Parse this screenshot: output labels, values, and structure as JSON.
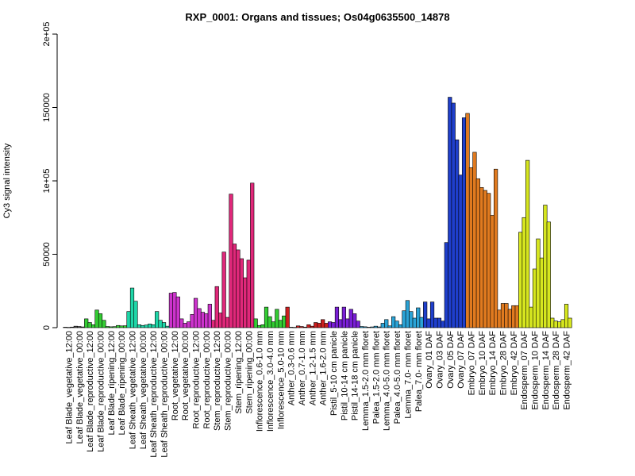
{
  "chart_data": {
    "type": "bar",
    "title": "RXP_0001: Organs and tissues; Os04g0635500_14878",
    "xlabel": "",
    "ylabel": "Cy3 signal intensity",
    "ylim": [
      0,
      200000
    ],
    "yticks": [
      0,
      50000,
      100000,
      150000,
      200000
    ],
    "yticklabels": [
      "0",
      "50000",
      "1e+05",
      "150000",
      "2e+05"
    ],
    "grid": false,
    "legend": "none",
    "groups": [
      {
        "label": "Leaf Blade_vegetative_12:00",
        "color": "#4d4d4d",
        "values": [
          300,
          200,
          400
        ]
      },
      {
        "label": "Leaf Blade_vegetative_00:00",
        "color": "#4d4d4d",
        "values": [
          1000,
          800,
          500
        ]
      },
      {
        "label": "Leaf Blade_reproductive_12:00",
        "color": "#33cc33",
        "values": [
          6000,
          3500,
          2000
        ]
      },
      {
        "label": "Leaf Blade_reproductive_00:00",
        "color": "#33cc33",
        "values": [
          12000,
          9500,
          5000
        ]
      },
      {
        "label": "Leaf Blade_ripening_12:00",
        "color": "#33cc33",
        "values": [
          800,
          600,
          700
        ]
      },
      {
        "label": "Leaf Blade_ripening_00:00",
        "color": "#33cc33",
        "values": [
          1500,
          1200,
          1300
        ]
      },
      {
        "label": "Leaf Sheath_vegetative_12:00",
        "color": "#1fd6a8",
        "values": [
          11000,
          27000,
          18000
        ]
      },
      {
        "label": "Leaf Sheath_vegetative_00:00",
        "color": "#1fd6a8",
        "values": [
          2000,
          1500,
          1800
        ]
      },
      {
        "label": "Leaf Sheath_reproductive_12:00",
        "color": "#1fd6a8",
        "values": [
          2500,
          2000,
          11000
        ]
      },
      {
        "label": "Leaf Sheath_reproductive_00:00",
        "color": "#1fd6a8",
        "values": [
          5000,
          3500,
          1000
        ]
      },
      {
        "label": "Root_vegetative_12:00",
        "color": "#cc33cc",
        "values": [
          23500,
          24000,
          21000
        ]
      },
      {
        "label": "Root_vegetative_00:00",
        "color": "#cc33cc",
        "values": [
          6000,
          3000,
          4000
        ]
      },
      {
        "label": "Root_reproductive_12:00",
        "color": "#cc33cc",
        "values": [
          9000,
          20000,
          13000
        ]
      },
      {
        "label": "Root_reproductive_00:00",
        "color": "#cc33cc",
        "values": [
          10500,
          9500,
          16000
        ]
      },
      {
        "label": "Stem_reproductive_12:00",
        "color": "#e0287a",
        "values": [
          5000,
          28000,
          10000
        ]
      },
      {
        "label": "Stem_reproductive_00:00",
        "color": "#e0287a",
        "values": [
          51500,
          7000,
          91000
        ]
      },
      {
        "label": "Stem_ripening_12:00",
        "color": "#e0287a",
        "values": [
          57000,
          53000,
          47000
        ]
      },
      {
        "label": "Stem_ripening_00:00",
        "color": "#e0287a",
        "values": [
          34000,
          46000,
          98500
        ]
      },
      {
        "label": "Inflorescence_0.6-1.0 mm",
        "color": "#33cc33",
        "values": [
          6000,
          1500,
          2000
        ]
      },
      {
        "label": "Inflorescence_3.0-4.0 mm",
        "color": "#33cc33",
        "values": [
          14000,
          7500,
          4000
        ]
      },
      {
        "label": "Inflorescence_5.0-10 mm",
        "color": "#33cc33",
        "values": [
          12500,
          5000,
          8000
        ]
      },
      {
        "label": "Anther_0.3-0.6 mm",
        "color": "#cc1f1f",
        "values": [
          14000,
          300,
          200
        ]
      },
      {
        "label": "Anther_0.7-1.0 mm",
        "color": "#cc1f1f",
        "values": [
          1200,
          800,
          400
        ]
      },
      {
        "label": "Anther_1.2-1.5 mm",
        "color": "#cc1f1f",
        "values": [
          2000,
          1000,
          3500
        ]
      },
      {
        "label": "Anther_1.6-2.0 mm",
        "color": "#cc1f1f",
        "values": [
          3000,
          5500,
          3000
        ]
      },
      {
        "label": "Pistil_5-10 cm panicle",
        "color": "#7a1fd6",
        "values": [
          4000,
          3500,
          14000
        ]
      },
      {
        "label": "Pistil_10-14 cm panicle",
        "color": "#7a1fd6",
        "values": [
          5500,
          14000,
          6000
        ]
      },
      {
        "label": "Pistil_14-18 cm panicle",
        "color": "#7a1fd6",
        "values": [
          12500,
          9500,
          4500
        ]
      },
      {
        "label": "Lemma_1.5-2.0 mm floret",
        "color": "#2aa3d6",
        "values": [
          800,
          600,
          300
        ]
      },
      {
        "label": "Palea_1.5-2.0 mm floret",
        "color": "#2aa3d6",
        "values": [
          500,
          1000,
          500
        ]
      },
      {
        "label": "Lemma_4.0-5.0 mm floret",
        "color": "#2aa3d6",
        "values": [
          3000,
          5500,
          1200
        ]
      },
      {
        "label": "Palea_4.0-5.0 mm floret",
        "color": "#2aa3d6",
        "values": [
          7500,
          4500,
          2000
        ]
      },
      {
        "label": "Lemma_7.0- mm floret",
        "color": "#2aa3d6",
        "values": [
          11500,
          18500,
          11000
        ]
      },
      {
        "label": "Palea_7.0- mm floret",
        "color": "#2aa3d6",
        "values": [
          6500,
          13500,
          7000
        ]
      },
      {
        "label": "Ovary_01 DAF",
        "color": "#1f3fcc",
        "values": [
          17500,
          6000,
          17500
        ]
      },
      {
        "label": "Ovary_03 DAF",
        "color": "#1f3fcc",
        "values": [
          6500,
          6500,
          4500
        ]
      },
      {
        "label": "Ovary_05 DAF",
        "color": "#1f3fcc",
        "values": [
          58000,
          157000,
          153000
        ]
      },
      {
        "label": "Ovary_07 DAF",
        "color": "#1f3fcc",
        "values": [
          128000,
          104000,
          143000
        ]
      },
      {
        "label": "Embryo_07 DAF",
        "color": "#e07a1f",
        "values": [
          146000,
          109000,
          119500
        ]
      },
      {
        "label": "Embryo_10 DAF",
        "color": "#e07a1f",
        "values": [
          101500,
          95500,
          93500
        ]
      },
      {
        "label": "Embryo_14 DAF",
        "color": "#e07a1f",
        "values": [
          91500,
          76500,
          108000
        ]
      },
      {
        "label": "Embryo_28 DAF",
        "color": "#e07a1f",
        "values": [
          12000,
          16500,
          16500
        ]
      },
      {
        "label": "Embryo_42 DAF",
        "color": "#e07a1f",
        "values": [
          12500,
          15000,
          15000
        ]
      },
      {
        "label": "Endosperm_07 DAF",
        "color": "#d6e61f",
        "values": [
          65000,
          75000,
          114000
        ]
      },
      {
        "label": "Endosperm_10 DAF",
        "color": "#d6e61f",
        "values": [
          14000,
          40000,
          60500
        ]
      },
      {
        "label": "Endosperm_14 DAF",
        "color": "#d6e61f",
        "values": [
          47500,
          83500,
          72000
        ]
      },
      {
        "label": "Endosperm_28 DAF",
        "color": "#d6e61f",
        "values": [
          6500,
          4500,
          4000
        ]
      },
      {
        "label": "Endosperm_42 DAF",
        "color": "#d6e61f",
        "values": [
          5500,
          16000,
          6500
        ]
      }
    ]
  }
}
